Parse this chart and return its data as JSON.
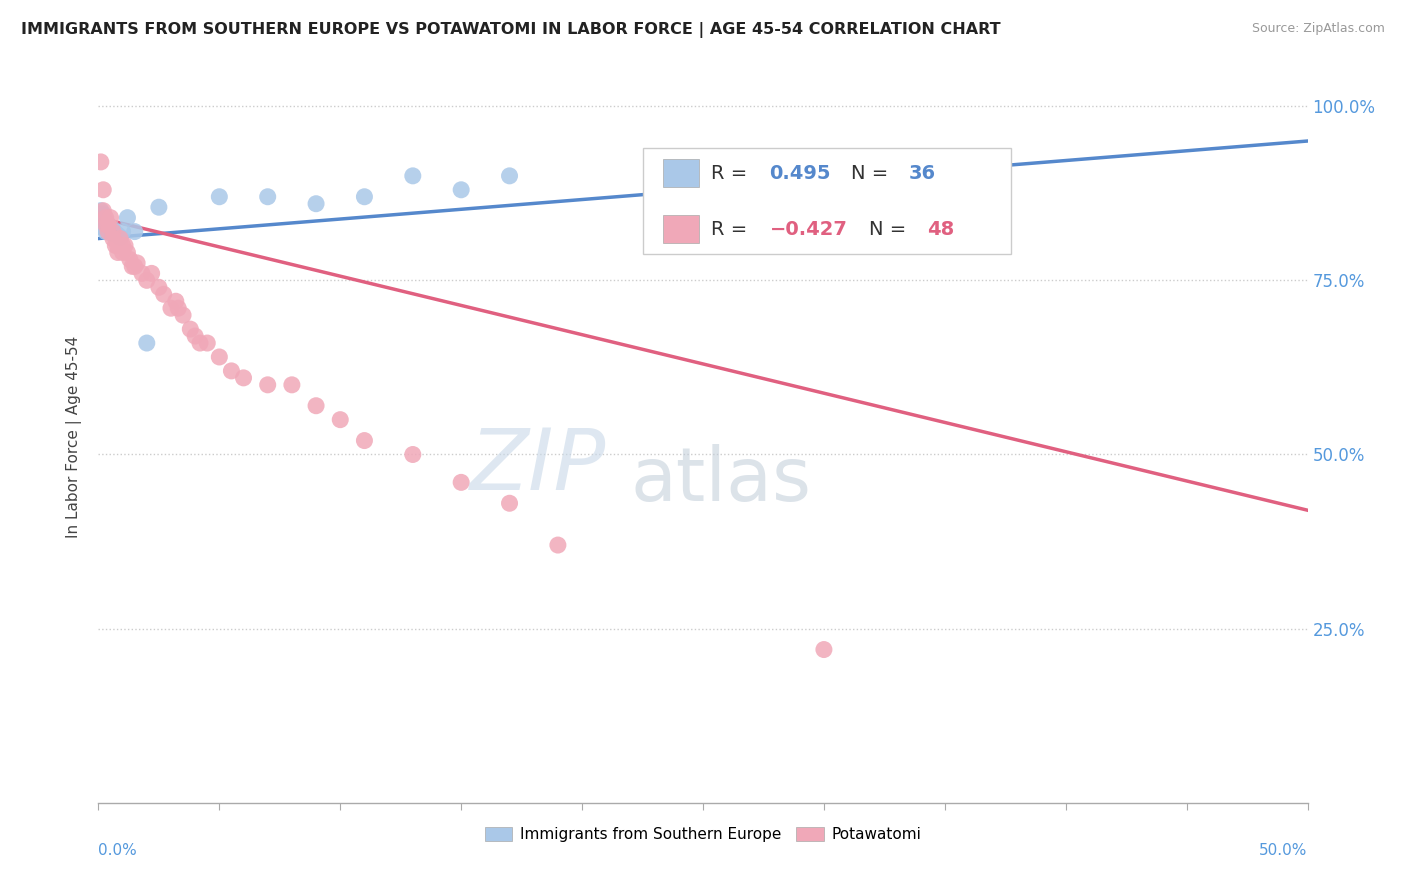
{
  "title": "IMMIGRANTS FROM SOUTHERN EUROPE VS POTAWATOMI IN LABOR FORCE | AGE 45-54 CORRELATION CHART",
  "source": "Source: ZipAtlas.com",
  "ylabel": "In Labor Force | Age 45-54",
  "xlim": [
    0.0,
    0.5
  ],
  "ylim": [
    0.0,
    1.05
  ],
  "yticks": [
    0.25,
    0.5,
    0.75,
    1.0
  ],
  "ytick_labels": [
    "25.0%",
    "50.0%",
    "75.0%",
    "100.0%"
  ],
  "xticks": [
    0.0,
    0.05,
    0.1,
    0.15,
    0.2,
    0.25,
    0.3,
    0.35,
    0.4,
    0.45,
    0.5
  ],
  "r_blue": 0.495,
  "n_blue": 36,
  "r_pink": -0.427,
  "n_pink": 48,
  "blue_color": "#aac8e8",
  "pink_color": "#f0a8b8",
  "blue_line_color": "#5588cc",
  "pink_line_color": "#e06080",
  "legend_blue": "Immigrants from Southern Europe",
  "legend_pink": "Potawatomi",
  "blue_scatter_x": [
    0.001,
    0.001,
    0.001,
    0.001,
    0.001,
    0.002,
    0.002,
    0.002,
    0.002,
    0.002,
    0.003,
    0.003,
    0.003,
    0.003,
    0.004,
    0.004,
    0.004,
    0.005,
    0.005,
    0.006,
    0.006,
    0.007,
    0.008,
    0.009,
    0.01,
    0.012,
    0.015,
    0.02,
    0.025,
    0.05,
    0.07,
    0.09,
    0.11,
    0.13,
    0.15,
    0.17
  ],
  "blue_scatter_y": [
    0.83,
    0.835,
    0.84,
    0.845,
    0.85,
    0.825,
    0.83,
    0.835,
    0.84,
    0.845,
    0.82,
    0.825,
    0.83,
    0.835,
    0.82,
    0.825,
    0.83,
    0.818,
    0.822,
    0.82,
    0.823,
    0.818,
    0.815,
    0.812,
    0.82,
    0.84,
    0.82,
    0.66,
    0.855,
    0.87,
    0.87,
    0.86,
    0.87,
    0.9,
    0.88,
    0.9
  ],
  "pink_scatter_x": [
    0.001,
    0.002,
    0.002,
    0.003,
    0.003,
    0.004,
    0.004,
    0.005,
    0.006,
    0.006,
    0.007,
    0.008,
    0.008,
    0.009,
    0.01,
    0.01,
    0.011,
    0.012,
    0.013,
    0.014,
    0.015,
    0.016,
    0.018,
    0.02,
    0.022,
    0.025,
    0.027,
    0.03,
    0.032,
    0.033,
    0.035,
    0.038,
    0.04,
    0.042,
    0.045,
    0.05,
    0.055,
    0.06,
    0.07,
    0.08,
    0.09,
    0.1,
    0.11,
    0.13,
    0.15,
    0.17,
    0.19,
    0.3
  ],
  "pink_scatter_y": [
    0.92,
    0.88,
    0.85,
    0.84,
    0.83,
    0.83,
    0.82,
    0.84,
    0.82,
    0.81,
    0.8,
    0.79,
    0.8,
    0.81,
    0.8,
    0.79,
    0.8,
    0.79,
    0.78,
    0.77,
    0.77,
    0.775,
    0.76,
    0.75,
    0.76,
    0.74,
    0.73,
    0.71,
    0.72,
    0.71,
    0.7,
    0.68,
    0.67,
    0.66,
    0.66,
    0.64,
    0.62,
    0.61,
    0.6,
    0.6,
    0.57,
    0.55,
    0.52,
    0.5,
    0.46,
    0.43,
    0.37,
    0.22
  ],
  "blue_trendline": [
    0.0,
    0.5
  ],
  "blue_trendline_y": [
    0.81,
    0.95
  ],
  "pink_trendline": [
    0.0,
    0.5
  ],
  "pink_trendline_y": [
    0.84,
    0.42
  ]
}
